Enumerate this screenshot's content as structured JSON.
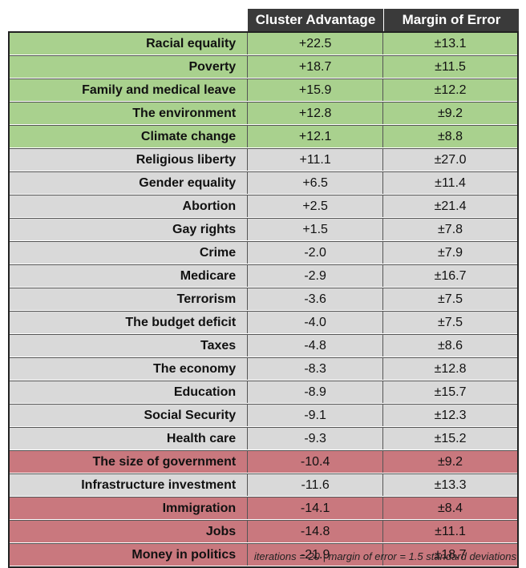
{
  "chart_data": {
    "type": "table",
    "columns": [
      "",
      "Cluster Advantage",
      "Margin of Error"
    ],
    "rows": [
      {
        "issue": "Racial equality",
        "advantage": "+22.5",
        "moe": "±13.1",
        "group": "positive"
      },
      {
        "issue": "Poverty",
        "advantage": "+18.7",
        "moe": "±11.5",
        "group": "positive"
      },
      {
        "issue": "Family and medical leave",
        "advantage": "+15.9",
        "moe": "±12.2",
        "group": "positive"
      },
      {
        "issue": "The environment",
        "advantage": "+12.8",
        "moe": "±9.2",
        "group": "positive"
      },
      {
        "issue": "Climate change",
        "advantage": "+12.1",
        "moe": "±8.8",
        "group": "positive"
      },
      {
        "issue": "Religious liberty",
        "advantage": "+11.1",
        "moe": "±27.0",
        "group": "neutral"
      },
      {
        "issue": "Gender equality",
        "advantage": "+6.5",
        "moe": "±11.4",
        "group": "neutral"
      },
      {
        "issue": "Abortion",
        "advantage": "+2.5",
        "moe": "±21.4",
        "group": "neutral"
      },
      {
        "issue": "Gay rights",
        "advantage": "+1.5",
        "moe": "±7.8",
        "group": "neutral"
      },
      {
        "issue": "Crime",
        "advantage": "-2.0",
        "moe": "±7.9",
        "group": "neutral"
      },
      {
        "issue": "Medicare",
        "advantage": "-2.9",
        "moe": "±16.7",
        "group": "neutral"
      },
      {
        "issue": "Terrorism",
        "advantage": "-3.6",
        "moe": "±7.5",
        "group": "neutral"
      },
      {
        "issue": "The budget deficit",
        "advantage": "-4.0",
        "moe": "±7.5",
        "group": "neutral"
      },
      {
        "issue": "Taxes",
        "advantage": "-4.8",
        "moe": "±8.6",
        "group": "neutral"
      },
      {
        "issue": "The economy",
        "advantage": "-8.3",
        "moe": "±12.8",
        "group": "neutral"
      },
      {
        "issue": "Education",
        "advantage": "-8.9",
        "moe": "±15.7",
        "group": "neutral"
      },
      {
        "issue": "Social Security",
        "advantage": "-9.1",
        "moe": "±12.3",
        "group": "neutral"
      },
      {
        "issue": "Health care",
        "advantage": "-9.3",
        "moe": "±15.2",
        "group": "neutral"
      },
      {
        "issue": "The size of government",
        "advantage": "-10.4",
        "moe": "±9.2",
        "group": "negative"
      },
      {
        "issue": "Infrastructure investment",
        "advantage": "-11.6",
        "moe": "±13.3",
        "group": "neutral"
      },
      {
        "issue": "Immigration",
        "advantage": "-14.1",
        "moe": "±8.4",
        "group": "negative"
      },
      {
        "issue": "Jobs",
        "advantage": "-14.8",
        "moe": "±11.1",
        "group": "negative"
      },
      {
        "issue": "Money in politics",
        "advantage": "-21.9",
        "moe": "±18.7",
        "group": "negative"
      }
    ],
    "group_colors": {
      "positive": "#a9d18e",
      "neutral": "#d9d9d9",
      "negative": "#c9787e"
    },
    "footnote": "iterations = 20 | margin of error = 1.5 standard deviations"
  }
}
